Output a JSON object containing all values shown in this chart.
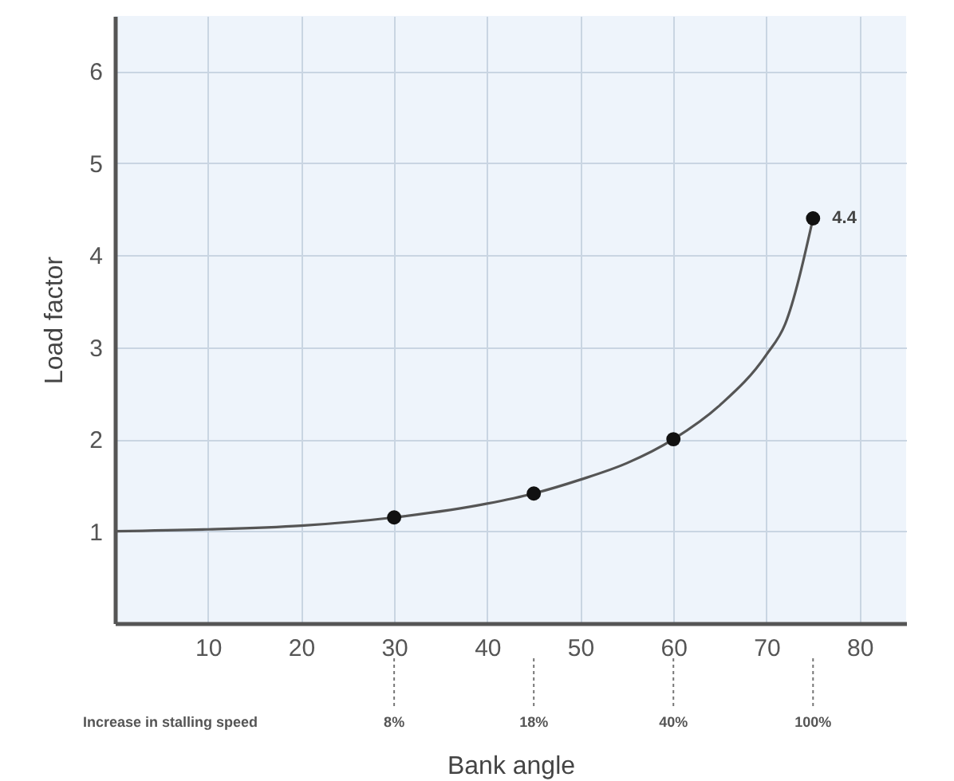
{
  "chart_data": {
    "type": "line",
    "xlabel": "Bank angle",
    "ylabel": "Load factor",
    "xlim": [
      0,
      85
    ],
    "ylim": [
      0,
      6.6
    ],
    "xticks": [
      10,
      20,
      30,
      40,
      50,
      60,
      70,
      80
    ],
    "yticks": [
      1,
      2,
      3,
      4,
      5,
      6
    ],
    "grid": true,
    "series": [
      {
        "color": "#555555",
        "x": [
          0,
          10,
          20,
          30,
          40,
          45,
          50,
          55,
          60,
          65,
          70,
          72,
          75
        ],
        "values": [
          1,
          1.02,
          1.06,
          1.15,
          1.3,
          1.41,
          1.56,
          1.74,
          2,
          2.37,
          2.92,
          3.25,
          4.4
        ]
      },
      {
        "type": "scatter",
        "color": "#111111",
        "marker": "circle",
        "x": [
          30,
          45,
          60,
          75
        ],
        "values": [
          1.15,
          1.41,
          2,
          4.4
        ],
        "value_labels": [
          null,
          null,
          null,
          "4.4"
        ]
      }
    ],
    "annotations": [
      "Increase in stalling speed",
      {
        "text": "8%",
        "x": 30
      },
      {
        "text": "18%",
        "x": 45
      },
      {
        "text": "40%",
        "x": 60
      },
      {
        "text": "100%",
        "x": 75
      }
    ]
  }
}
